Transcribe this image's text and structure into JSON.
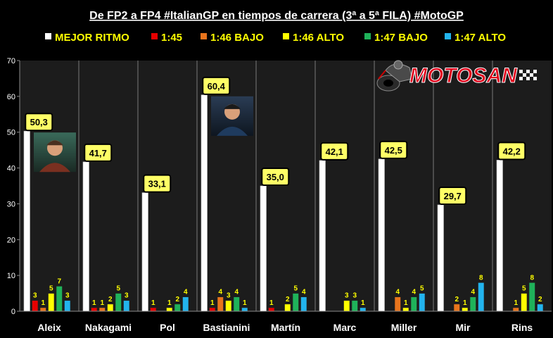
{
  "chart_data": {
    "type": "bar",
    "title": "De FP2 a FP4 #ItalianGP en tiempos de carrera (3ª a 5ª FILA) #MotoGP",
    "categories": [
      "Aleix",
      "Nakagami",
      "Pol",
      "Bastianini",
      "Martín",
      "Marc",
      "Miller",
      "Mir",
      "Rins"
    ],
    "series": [
      {
        "name": "MEJOR RITMO",
        "color": "#ffffff",
        "values": [
          50.3,
          41.7,
          33.1,
          60.4,
          35.0,
          42.1,
          42.5,
          29.7,
          42.2
        ]
      },
      {
        "name": "1:45",
        "color": "#e60000",
        "values": [
          3,
          1,
          1,
          1,
          1,
          0,
          0,
          0,
          0
        ]
      },
      {
        "name": "1:46 BAJO",
        "color": "#e8741c",
        "values": [
          1,
          1,
          0,
          4,
          0,
          0,
          4,
          2,
          1
        ]
      },
      {
        "name": "1:46 ALTO",
        "color": "#ffff00",
        "values": [
          5,
          2,
          1,
          3,
          2,
          3,
          1,
          1,
          5
        ]
      },
      {
        "name": "1:47 BAJO",
        "color": "#1fb25a",
        "values": [
          7,
          5,
          2,
          4,
          5,
          3,
          4,
          4,
          8
        ]
      },
      {
        "name": "1:47 ALTO",
        "color": "#22b4ee",
        "values": [
          3,
          3,
          4,
          1,
          4,
          1,
          5,
          8,
          2
        ]
      }
    ],
    "callout_labels": [
      "50,3",
      "41,7",
      "33,1",
      "60,4",
      "35,0",
      "42,1",
      "42,5",
      "29,7",
      "42,2"
    ],
    "small_labels": [
      [
        "3",
        "1",
        "5",
        "7",
        "3"
      ],
      [
        "1",
        "1",
        "2",
        "5",
        "3"
      ],
      [
        "1",
        "",
        "1",
        "2",
        "4"
      ],
      [
        "1",
        "4",
        "3",
        "4",
        "1"
      ],
      [
        "1",
        "",
        "2",
        "5",
        "4"
      ],
      [
        "",
        "",
        "3",
        "3",
        "1"
      ],
      [
        "",
        "4",
        "1",
        "4",
        "5"
      ],
      [
        "",
        "2",
        "1",
        "4",
        "8"
      ],
      [
        "",
        "1",
        "5",
        "8",
        "2"
      ]
    ],
    "yticks": [
      "0",
      "10",
      "20",
      "30",
      "40",
      "50",
      "60",
      "70"
    ],
    "ylim": [
      0,
      70
    ],
    "xlabel": "",
    "ylabel": "",
    "grid": false,
    "legend_position": "top",
    "photo_callouts": [
      0,
      3
    ]
  },
  "logo": {
    "text": "MOTOSAN",
    "color": "#e0001a"
  },
  "colors": {
    "background": "#000000",
    "plot_bg": "#1c1c1c",
    "axis": "#7f7f7f",
    "callout_bg": "#ffff66",
    "callout_text": "#000000"
  }
}
